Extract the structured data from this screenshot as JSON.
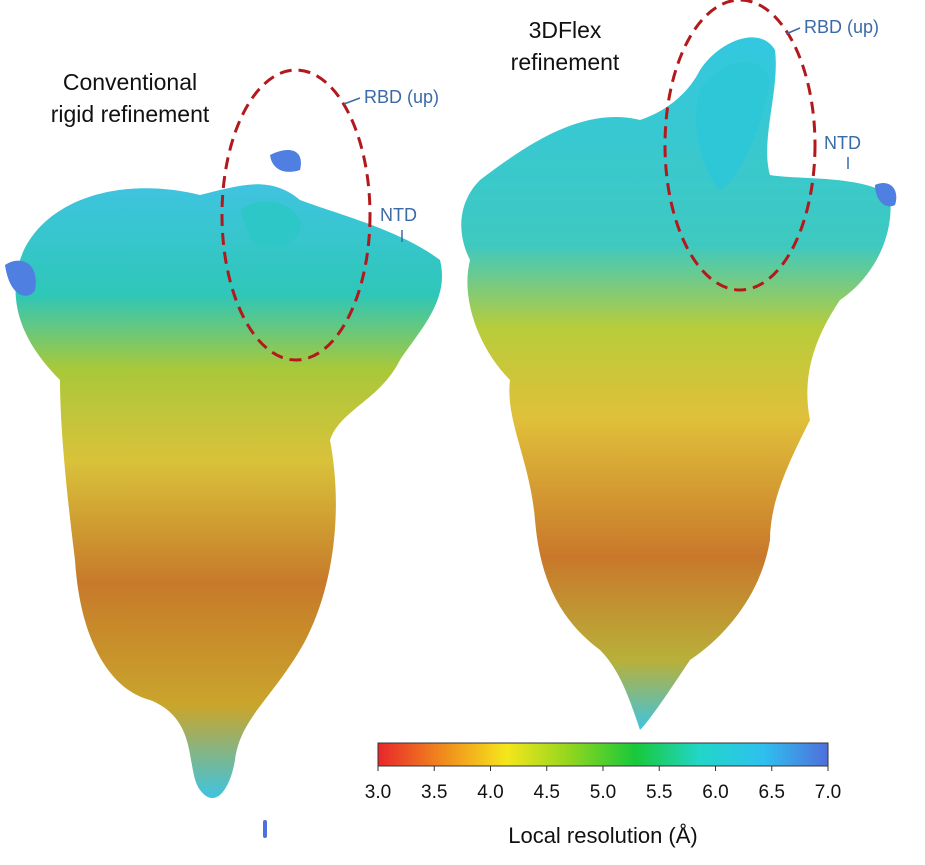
{
  "panels": [
    {
      "title": [
        "Conventional",
        "rigid refinement"
      ],
      "labels": [
        "RBD (up)",
        "NTD"
      ]
    },
    {
      "title": [
        "3DFlex",
        "refinement"
      ],
      "labels": [
        "RBD (up)",
        "NTD"
      ]
    }
  ],
  "colorbar": {
    "title": "Local resolution (Å)",
    "lim": [
      3,
      7
    ],
    "colors": [
      "#e8262b",
      "#f08a1c",
      "#f5e61c",
      "#8fd61e",
      "#18c83a",
      "#22d6c8",
      "#2ec0ee",
      "#4f6fdc"
    ],
    "ticks": [
      {
        "value": 3,
        "label": "3.0"
      },
      {
        "value": 3.5,
        "label": "3.5"
      },
      {
        "value": 4,
        "label": "4.0"
      },
      {
        "value": 4.5,
        "label": "4.5"
      },
      {
        "value": 5,
        "label": "5.0"
      },
      {
        "value": 5.5,
        "label": "5.5"
      },
      {
        "value": 6,
        "label": "6.0"
      },
      {
        "value": 6.5,
        "label": "6.5"
      },
      {
        "value": 7,
        "label": "7.0"
      }
    ]
  }
}
